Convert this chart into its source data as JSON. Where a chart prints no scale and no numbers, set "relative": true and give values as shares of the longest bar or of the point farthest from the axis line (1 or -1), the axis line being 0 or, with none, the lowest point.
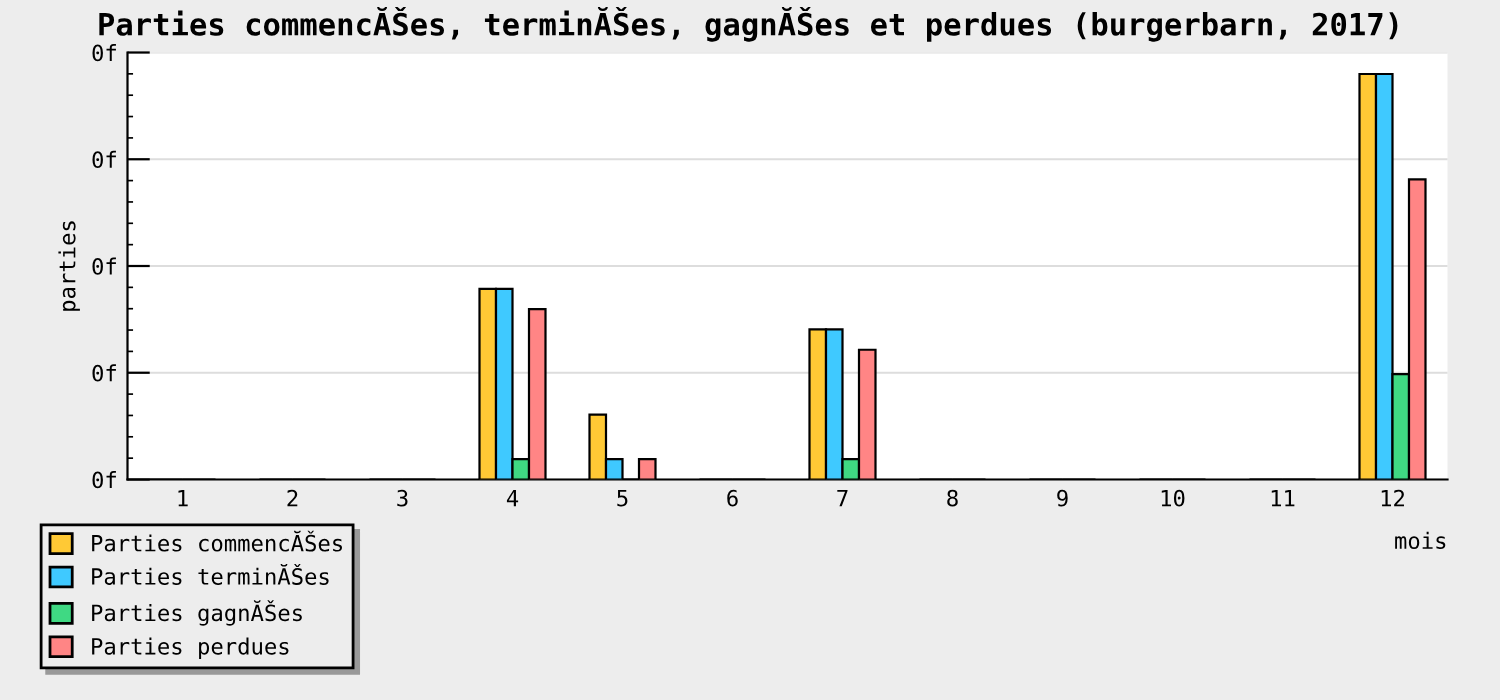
{
  "chart_data": {
    "type": "bar",
    "title": "Parties commencĂŠes, terminĂŠes, gagnĂŠes et perdues (burgerbarn, 2017)",
    "xlabel": "mois",
    "ylabel": "parties",
    "categories": [
      "1",
      "2",
      "3",
      "4",
      "5",
      "6",
      "7",
      "8",
      "9",
      "10",
      "11",
      "12"
    ],
    "relative": true,
    "annotations": [
      "0f",
      "0f",
      "0f",
      "0f",
      "0f"
    ],
    "series": [
      {
        "name": "Parties commencĂŠes",
        "color": "#ffc935",
        "values": [
          0,
          0,
          0,
          0.47,
          0.16,
          0,
          0.37,
          0,
          0,
          0,
          0,
          1
        ]
      },
      {
        "name": "Parties terminĂŠes",
        "color": "#3fc9ff",
        "values": [
          0,
          0,
          0,
          0.47,
          0.05,
          0,
          0.37,
          0,
          0,
          0,
          0,
          1
        ]
      },
      {
        "name": "Parties gagnĂŠes",
        "color": "#3fd983",
        "values": [
          0,
          0,
          0,
          0.05,
          0,
          0,
          0.05,
          0,
          0,
          0,
          0,
          0.26
        ]
      },
      {
        "name": "Parties perdues",
        "color": "#ff8585",
        "values": [
          0,
          0,
          0,
          0.42,
          0.05,
          0,
          0.32,
          0,
          0,
          0,
          0,
          0.74
        ]
      }
    ],
    "grid": "y",
    "legend": "bottom left"
  }
}
